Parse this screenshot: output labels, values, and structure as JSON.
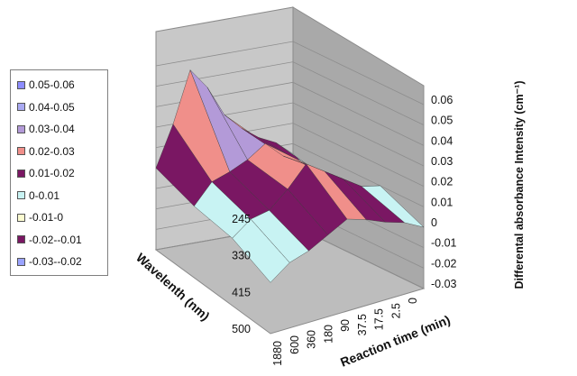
{
  "chart_data": {
    "type": "surface",
    "zlabel": "Differental absorbance Intensity (cm⁻¹)",
    "xlabel": "Reaction time (min)",
    "ylabel": "Wavelenth (nm)",
    "z_ticks": [
      "0.06",
      "0.05",
      "0.04",
      "0.03",
      "0.02",
      "0.01",
      "0",
      "-0.01",
      "-0.02",
      "-0.03"
    ],
    "time_ticks": [
      "0",
      "2.5",
      "17.5",
      "37.5",
      "90",
      "180",
      "360",
      "600",
      "1880"
    ],
    "wavelength_ticks": [
      "245",
      "330",
      "415",
      "500"
    ],
    "zlim": [
      -0.03,
      0.06
    ],
    "legend_position": "left",
    "legend": [
      {
        "label": "0.05-0.06",
        "color": "#8c8cff"
      },
      {
        "label": "0.04-0.05",
        "color": "#a9a9f2"
      },
      {
        "label": "0.03-0.04",
        "color": "#b39ad8"
      },
      {
        "label": "0.02-0.03",
        "color": "#f08f8a"
      },
      {
        "label": "0.01-0.02",
        "color": "#7a1763"
      },
      {
        "label": "0-0.01",
        "color": "#c8f3f3"
      },
      {
        "label": "-0.01-0",
        "color": "#fbfbd0"
      },
      {
        "label": "-0.02--0.01",
        "color": "#7a1763"
      },
      {
        "label": "-0.03--0.02",
        "color": "#9aa3ff"
      }
    ],
    "surface_grid": {
      "rows_wavelength": [
        "245",
        "330",
        "415",
        "500"
      ],
      "cols_time": [
        "0",
        "2.5",
        "17.5",
        "37.5",
        "90",
        "180",
        "360",
        "600",
        "1880"
      ],
      "values": [
        [
          0.005,
          0.012,
          0.016,
          0.022,
          0.03,
          0.045,
          0.055,
          0.03,
          0.01
        ],
        [
          -0.005,
          0.008,
          0.015,
          0.02,
          0.028,
          0.022,
          0.018,
          0.015,
          0.005
        ],
        [
          0.01,
          0.012,
          0.018,
          0.024,
          0.03,
          0.02,
          0.012,
          0.01,
          0.003
        ],
        [
          0.0,
          0.005,
          0.008,
          0.012,
          0.015,
          0.01,
          0.005,
          0.002,
          -0.005
        ]
      ]
    }
  }
}
